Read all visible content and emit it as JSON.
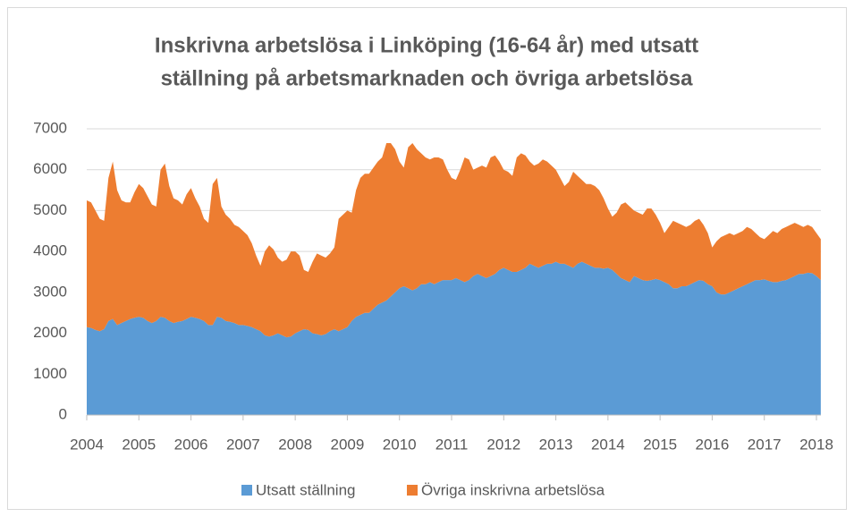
{
  "chart_data": {
    "type": "stacked_area",
    "title": [
      "Inskrivna arbetslösa i Linköping (16-64 år) med utsatt",
      "ställning på arbetsmarknaden och övriga arbetslösa"
    ],
    "categories": [
      "2004",
      null,
      null,
      null,
      null,
      null,
      null,
      null,
      null,
      null,
      null,
      null,
      "2005",
      null,
      null,
      null,
      null,
      null,
      null,
      null,
      null,
      null,
      null,
      null,
      "2006",
      null,
      null,
      null,
      null,
      null,
      null,
      null,
      null,
      null,
      null,
      null,
      "2007",
      null,
      null,
      null,
      null,
      null,
      null,
      null,
      null,
      null,
      null,
      null,
      "2008",
      null,
      null,
      null,
      null,
      null,
      null,
      null,
      null,
      null,
      null,
      null,
      "2009",
      null,
      null,
      null,
      null,
      null,
      null,
      null,
      null,
      null,
      null,
      null,
      "2010",
      null,
      null,
      null,
      null,
      null,
      null,
      null,
      null,
      null,
      null,
      null,
      "2011",
      null,
      null,
      null,
      null,
      null,
      null,
      null,
      null,
      null,
      null,
      null,
      "2012",
      null,
      null,
      null,
      null,
      null,
      null,
      null,
      null,
      null,
      null,
      null,
      "2013",
      null,
      null,
      null,
      null,
      null,
      null,
      null,
      null,
      null,
      null,
      null,
      "2014",
      null,
      null,
      null,
      null,
      null,
      null,
      null,
      null,
      null,
      null,
      null,
      "2015",
      null,
      null,
      null,
      null,
      null,
      null,
      null,
      null,
      null,
      null,
      null,
      "2016",
      null,
      null,
      null,
      null,
      null,
      null,
      null,
      null,
      null,
      null,
      null,
      "2017",
      null,
      null,
      null,
      null,
      null,
      null,
      null,
      null,
      null,
      null,
      null,
      "2018",
      null
    ],
    "series": [
      {
        "name": "Utsatt ställning",
        "color": "#5b9bd5",
        "values": [
          2150,
          2130,
          2080,
          2050,
          2100,
          2300,
          2350,
          2200,
          2250,
          2300,
          2350,
          2380,
          2400,
          2380,
          2300,
          2250,
          2300,
          2400,
          2380,
          2300,
          2250,
          2280,
          2300,
          2350,
          2400,
          2380,
          2350,
          2300,
          2200,
          2200,
          2400,
          2380,
          2300,
          2280,
          2250,
          2200,
          2200,
          2180,
          2150,
          2100,
          2050,
          1950,
          1920,
          1950,
          2000,
          1950,
          1900,
          1920,
          2000,
          2050,
          2100,
          2080,
          2000,
          1980,
          1950,
          1980,
          2050,
          2100,
          2050,
          2100,
          2150,
          2300,
          2400,
          2450,
          2500,
          2500,
          2600,
          2700,
          2750,
          2800,
          2900,
          3000,
          3100,
          3150,
          3100,
          3050,
          3100,
          3200,
          3200,
          3250,
          3200,
          3250,
          3300,
          3300,
          3300,
          3350,
          3300,
          3250,
          3300,
          3400,
          3450,
          3400,
          3350,
          3400,
          3450,
          3550,
          3600,
          3550,
          3500,
          3500,
          3550,
          3600,
          3700,
          3650,
          3600,
          3650,
          3700,
          3700,
          3750,
          3700,
          3700,
          3650,
          3600,
          3700,
          3750,
          3700,
          3650,
          3600,
          3600,
          3580,
          3600,
          3550,
          3450,
          3350,
          3300,
          3250,
          3400,
          3350,
          3300,
          3280,
          3300,
          3330,
          3300,
          3250,
          3200,
          3100,
          3100,
          3150,
          3150,
          3200,
          3250,
          3300,
          3280,
          3200,
          3150,
          3000,
          2950,
          2950,
          3000,
          3050,
          3100,
          3150,
          3200,
          3250,
          3300,
          3300,
          3320,
          3280,
          3250,
          3250,
          3280,
          3300,
          3350,
          3400,
          3450,
          3450,
          3480,
          3470,
          3400,
          3300
        ]
      },
      {
        "name": "Övriga inskrivna arbetslösa",
        "color": "#ed7d31",
        "values": [
          3100,
          3070,
          2920,
          2750,
          2650,
          3500,
          3850,
          3300,
          3000,
          2900,
          2850,
          3070,
          3250,
          3170,
          3050,
          2900,
          2800,
          3600,
          3770,
          3300,
          3050,
          2970,
          2850,
          3050,
          3150,
          2920,
          2750,
          2500,
          2500,
          3450,
          3400,
          2720,
          2600,
          2520,
          2400,
          2400,
          2300,
          2220,
          2050,
          1800,
          1600,
          2050,
          2230,
          2100,
          1850,
          1800,
          1900,
          2080,
          2000,
          1850,
          1450,
          1420,
          1750,
          1970,
          1950,
          1870,
          1900,
          2000,
          2750,
          2800,
          2850,
          2650,
          3100,
          3350,
          3400,
          3400,
          3450,
          3500,
          3550,
          3850,
          3750,
          3500,
          3100,
          2900,
          3450,
          3600,
          3400,
          3200,
          3100,
          3000,
          3100,
          3050,
          2950,
          2700,
          2500,
          2400,
          2700,
          3050,
          2950,
          2600,
          2600,
          2700,
          2700,
          2900,
          2900,
          2650,
          2400,
          2400,
          2350,
          2800,
          2850,
          2750,
          2500,
          2450,
          2550,
          2600,
          2500,
          2400,
          2250,
          2100,
          1900,
          2050,
          2350,
          2150,
          2000,
          1950,
          2000,
          2000,
          1900,
          1720,
          1450,
          1300,
          1500,
          1800,
          1900,
          1850,
          1600,
          1600,
          1600,
          1770,
          1750,
          1570,
          1400,
          1200,
          1400,
          1650,
          1600,
          1500,
          1450,
          1450,
          1500,
          1500,
          1370,
          1250,
          950,
          1250,
          1400,
          1450,
          1450,
          1350,
          1350,
          1350,
          1400,
          1300,
          1150,
          1050,
          980,
          1120,
          1250,
          1200,
          1270,
          1300,
          1300,
          1300,
          1200,
          1150,
          1170,
          1130,
          1050,
          1000
        ]
      }
    ],
    "ylim": [
      0,
      7000
    ],
    "yticks": [
      0,
      1000,
      2000,
      3000,
      4000,
      5000,
      6000,
      7000
    ],
    "grid": true,
    "legend": "bottom"
  }
}
